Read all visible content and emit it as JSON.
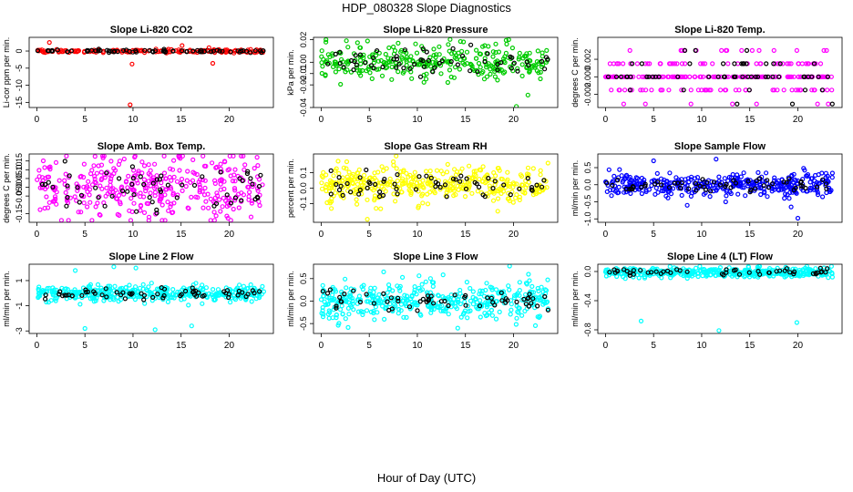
{
  "figure": {
    "title": "HDP_080328  Slope Diagnostics",
    "xlabel": "Hour of Day (UTC)"
  },
  "chart_data": [
    {
      "type": "scatter",
      "title": "Slope Li-820 CO2",
      "ylabel": "Li-cor ppm per min.",
      "color": "#ff0000",
      "xlim": [
        -0.8,
        24.6
      ],
      "ylim": [
        -16.5,
        4
      ],
      "xticks": [
        0,
        5,
        10,
        15,
        20
      ],
      "yticks": [
        -15,
        -10,
        -5,
        0
      ],
      "ytick_labels": [
        "-15",
        "-10",
        "-5",
        "0"
      ],
      "center": 0,
      "spread": 0.25,
      "series": [
        {
          "name": "colored",
          "color": "#ff0000",
          "count": 150
        },
        {
          "name": "black",
          "color": "#000000",
          "count": 70
        }
      ],
      "outliers": [
        [
          1.3,
          2.5
        ],
        [
          9.7,
          -15.7
        ],
        [
          9.9,
          -3.8
        ],
        [
          15.1,
          1.6
        ],
        [
          18.3,
          -3.6
        ],
        [
          17.9,
          1.0
        ]
      ]
    },
    {
      "type": "scatter",
      "title": "Slope Li-820 Pressure",
      "ylabel": "kPa per min.",
      "color": "#00cc00",
      "xlim": [
        -0.8,
        24.6
      ],
      "ylim": [
        -0.04,
        0.022
      ],
      "xticks": [
        0,
        5,
        10,
        15,
        20
      ],
      "yticks": [
        -0.04,
        -0.02,
        -0.01,
        0,
        0.02
      ],
      "ytick_labels": [
        "-0.04",
        "-0.02",
        "-0.01",
        "0.00",
        "0.02"
      ],
      "center": 0,
      "spread": 0.008,
      "series": [
        {
          "name": "colored",
          "color": "#00cc00",
          "count": 300
        },
        {
          "name": "black",
          "color": "#000000",
          "count": 60
        }
      ],
      "outliers": [
        [
          0.5,
          0.02
        ],
        [
          19.5,
          0.02
        ],
        [
          20.3,
          -0.039
        ],
        [
          21.5,
          -0.029
        ],
        [
          14.8,
          0.018
        ]
      ]
    },
    {
      "type": "scatter",
      "title": "Slope Li-820 Temp.",
      "ylabel": "degrees C per min.",
      "color": "#ff00ff",
      "xlim": [
        -0.8,
        24.6
      ],
      "ylim": [
        -0.0035,
        0.0045
      ],
      "xticks": [
        0,
        5,
        10,
        15,
        20
      ],
      "yticks": [
        -0.002,
        0,
        0.002
      ],
      "ytick_labels": [
        "-0.002",
        "0.000",
        "0.002"
      ],
      "discrete": [
        -0.0031,
        -0.0015,
        0,
        0.0015,
        0.003
      ],
      "series": [
        {
          "name": "colored",
          "color": "#ff00ff",
          "count": 260
        },
        {
          "name": "black",
          "color": "#000000",
          "count": 60
        }
      ],
      "outliers": []
    },
    {
      "type": "scatter",
      "title": "Slope Amb. Box Temp.",
      "ylabel": "degrees C per min.",
      "color": "#ff00ff",
      "xlim": [
        -0.8,
        24.6
      ],
      "ylim": [
        -0.2,
        0.19
      ],
      "xticks": [
        0,
        5,
        10,
        15,
        20
      ],
      "yticks": [
        -0.15,
        -0.05,
        0,
        0.05,
        0.1,
        0.15
      ],
      "ytick_labels": [
        "-0.15",
        "-0.05",
        "0.00",
        "0.05",
        "0.10",
        "0.15"
      ],
      "center": 0,
      "spread": 0.09,
      "series": [
        {
          "name": "colored",
          "color": "#ff00ff",
          "count": 380
        },
        {
          "name": "black",
          "color": "#000000",
          "count": 60
        }
      ],
      "outliers": []
    },
    {
      "type": "scatter",
      "title": "Slope Gas Stream RH",
      "ylabel": "percent per min.",
      "color": "#ffff00",
      "xlim": [
        -0.8,
        24.6
      ],
      "ylim": [
        -0.22,
        0.22
      ],
      "xticks": [
        0,
        5,
        10,
        15,
        20
      ],
      "yticks": [
        -0.1,
        0,
        0.1
      ],
      "ytick_labels": [
        "-0.1",
        "0.0",
        "0.1"
      ],
      "center": 0.02,
      "spread": 0.06,
      "series": [
        {
          "name": "colored",
          "color": "#ffff00",
          "count": 380
        },
        {
          "name": "black",
          "color": "#000000",
          "count": 60
        }
      ],
      "outliers": [
        [
          4.8,
          -0.2
        ],
        [
          7.5,
          0.17
        ]
      ]
    },
    {
      "type": "scatter",
      "title": "Slope Sample Flow",
      "ylabel": "ml/min per min.",
      "color": "#0000ff",
      "xlim": [
        -0.8,
        24.6
      ],
      "ylim": [
        -1.1,
        0.9
      ],
      "xticks": [
        0,
        5,
        10,
        15,
        20
      ],
      "yticks": [
        -1,
        -0.5,
        0,
        0.5
      ],
      "ytick_labels": [
        "-1.0",
        "-0.5",
        "0.0",
        "0.5"
      ],
      "center": 0,
      "spread": 0.16,
      "series": [
        {
          "name": "colored",
          "color": "#0000ff",
          "count": 380
        },
        {
          "name": "black",
          "color": "#000000",
          "count": 60
        }
      ],
      "outliers": [
        [
          5.0,
          0.7
        ],
        [
          11.5,
          0.75
        ],
        [
          19.3,
          -0.65
        ],
        [
          20.0,
          -0.98
        ],
        [
          8.5,
          -0.6
        ],
        [
          12.5,
          -0.5
        ]
      ]
    },
    {
      "type": "scatter",
      "title": "Slope Line 2 Flow",
      "ylabel": "ml/min per min.",
      "color": "#00ffff",
      "xlim": [
        -0.8,
        24.6
      ],
      "ylim": [
        -3.2,
        2.3
      ],
      "xticks": [
        0,
        5,
        10,
        15,
        20
      ],
      "yticks": [
        -3,
        -1,
        1
      ],
      "ytick_labels": [
        "-3",
        "-1",
        "1"
      ],
      "center": 0,
      "spread": 0.3,
      "series": [
        {
          "name": "colored",
          "color": "#00ffff",
          "count": 380
        },
        {
          "name": "black",
          "color": "#000000",
          "count": 60
        }
      ],
      "outliers": [
        [
          5.0,
          -2.8
        ],
        [
          8.0,
          2.1
        ],
        [
          10.3,
          2.0
        ],
        [
          12.3,
          -2.9
        ],
        [
          16.1,
          -2.6
        ],
        [
          4.0,
          1.8
        ]
      ]
    },
    {
      "type": "scatter",
      "title": "Slope Line 3 Flow",
      "ylabel": "ml/min per min.",
      "color": "#00ffff",
      "xlim": [
        -0.8,
        24.6
      ],
      "ylim": [
        -0.72,
        0.82
      ],
      "xticks": [
        0,
        5,
        10,
        15,
        20
      ],
      "yticks": [
        -0.5,
        0,
        0.5
      ],
      "ytick_labels": [
        "-0.5",
        "0.0",
        "0.5"
      ],
      "center": 0,
      "spread": 0.2,
      "series": [
        {
          "name": "colored",
          "color": "#00ffff",
          "count": 420
        },
        {
          "name": "black",
          "color": "#000000",
          "count": 60
        }
      ],
      "outliers": [
        [
          19.6,
          0.78
        ],
        [
          14.2,
          -0.6
        ],
        [
          6.5,
          0.65
        ]
      ]
    },
    {
      "type": "scatter",
      "title": "Slope Line 4 (LT) Flow",
      "ylabel": "ml/min per min.",
      "color": "#00ffff",
      "xlim": [
        -0.8,
        24.6
      ],
      "ylim": [
        -0.85,
        0.1
      ],
      "xticks": [
        0,
        5,
        10,
        15,
        20
      ],
      "yticks": [
        -0.8,
        -0.4,
        0
      ],
      "ytick_labels": [
        "-0.8",
        "-0.4",
        "0.0"
      ],
      "center": -0.01,
      "spread": 0.035,
      "series": [
        {
          "name": "colored",
          "color": "#00ffff",
          "count": 420
        },
        {
          "name": "black",
          "color": "#000000",
          "count": 50
        }
      ],
      "outliers": [
        [
          3.7,
          -0.68
        ],
        [
          11.8,
          -0.81
        ],
        [
          19.9,
          -0.7
        ]
      ]
    }
  ]
}
